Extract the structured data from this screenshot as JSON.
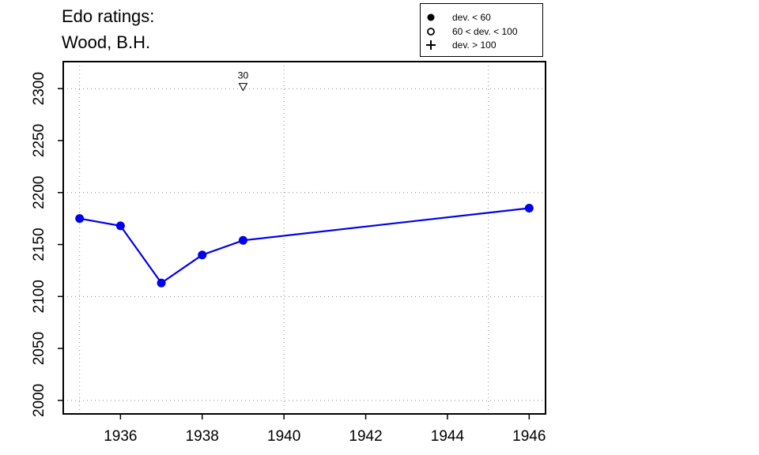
{
  "title_lines": [
    "Edo ratings:",
    "Wood, B.H."
  ],
  "legend": {
    "entries": [
      {
        "label": "dev. < 60",
        "symbol": "filled-circle-icon"
      },
      {
        "label": "60 < dev. < 100",
        "symbol": "open-circle-icon"
      },
      {
        "label": "dev. > 100",
        "symbol": "plus-icon"
      }
    ]
  },
  "chart_data": {
    "type": "line",
    "title": "Edo ratings: Wood, B.H.",
    "xlabel": "",
    "ylabel": "",
    "xlim": [
      1934.6,
      1946.4
    ],
    "ylim": [
      1987,
      2326
    ],
    "x_ticks": [
      1936,
      1938,
      1940,
      1942,
      1944,
      1946
    ],
    "y_ticks": [
      2000,
      2050,
      2100,
      2150,
      2200,
      2250,
      2300
    ],
    "grid_x": [
      1935,
      1940,
      1945
    ],
    "grid_y": [
      2000,
      2100,
      2200,
      2300
    ],
    "grid": true,
    "legend_position": "top-right",
    "series_color": "#0000ee",
    "series": [
      {
        "x": [
          1935,
          1936,
          1937,
          1938,
          1939,
          1946
        ],
        "y": [
          2175,
          2168,
          2113,
          2140,
          2154,
          2185
        ],
        "marker": "filled-circle"
      }
    ],
    "annotations": [
      {
        "x": 1939,
        "y": 2302,
        "label": "30",
        "marker": "down-triangle"
      }
    ]
  }
}
